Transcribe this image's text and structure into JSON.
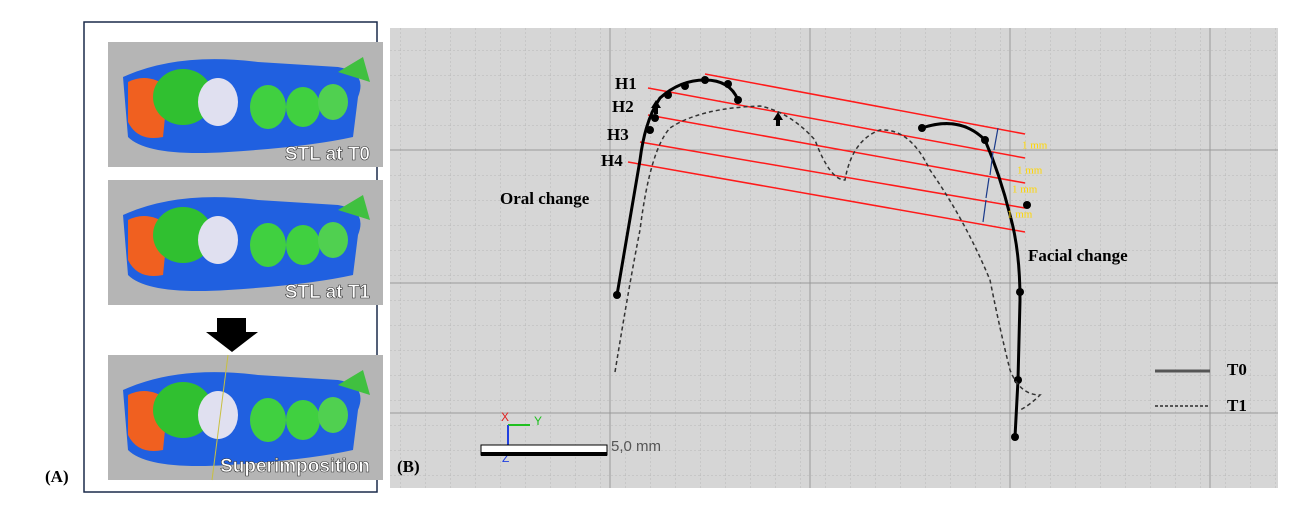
{
  "panel_a": {
    "label": "(A)",
    "captions": [
      "STL at T0",
      "STL at T1",
      "Superimposition"
    ]
  },
  "panel_b": {
    "label": "(B)",
    "levels": [
      "H1",
      "H2",
      "H3",
      "H4"
    ],
    "oral": "Oral change",
    "facial": "Facial change",
    "spacing": [
      "1 mm",
      "1 mm",
      "1 mm",
      "1 mm"
    ],
    "legend": [
      "T0",
      "T1"
    ],
    "axes": [
      "X",
      "Y",
      "Z"
    ],
    "scale": "5,0 mm"
  }
}
